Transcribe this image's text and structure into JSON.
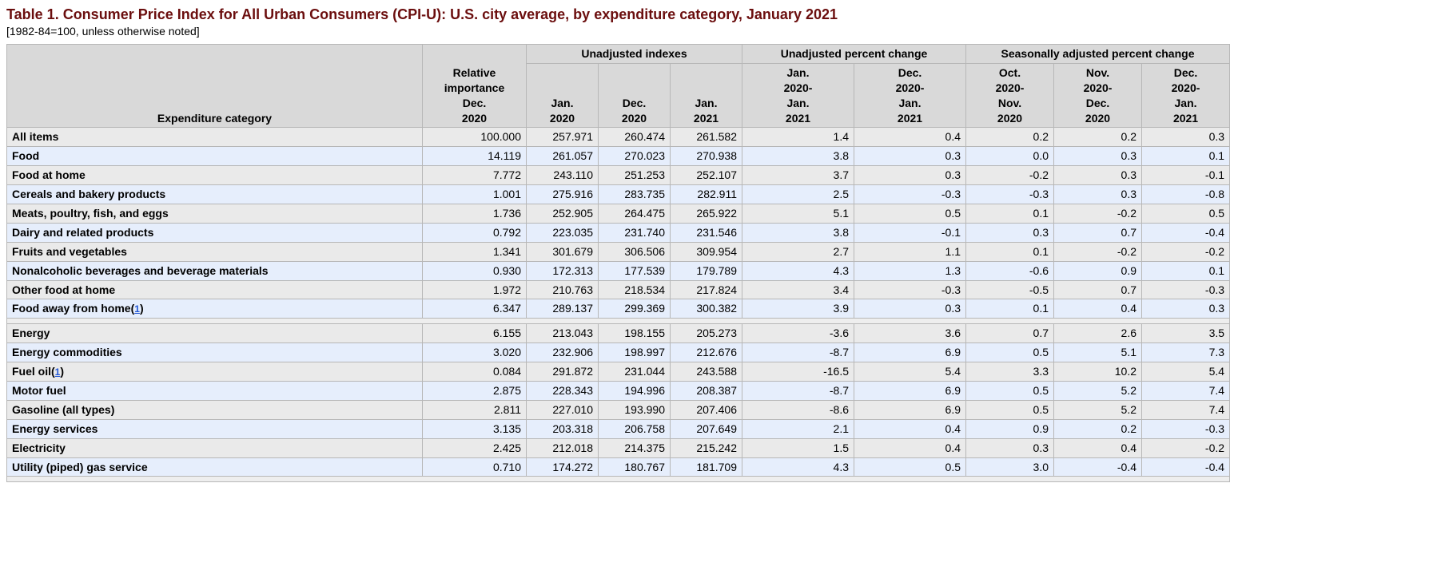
{
  "title": "Table 1. Consumer Price Index for All Urban Consumers (CPI-U): U.S. city average, by expenditure category, January 2021",
  "subtitle": "[1982-84=100, unless otherwise noted]",
  "footnote_marker": "1",
  "colgroups": {
    "g1": "Unadjusted indexes",
    "g2": "Unadjusted percent change",
    "g3": "Seasonally adjusted percent change"
  },
  "columns": {
    "exp": "Expenditure category",
    "rel": "Relative\nimportance\nDec.\n2020",
    "j20": "Jan.\n2020",
    "d20": "Dec.\n2020",
    "j21": "Jan.\n2021",
    "u1": "Jan.\n2020-\nJan.\n2021",
    "u2": "Dec.\n2020-\nJan.\n2021",
    "s1": "Oct.\n2020-\nNov.\n2020",
    "s2": "Nov.\n2020-\nDec.\n2020",
    "s3": "Dec.\n2020-\nJan.\n2021"
  },
  "col_widths": {
    "exp": 520,
    "rel": 130,
    "j20": 90,
    "d20": 90,
    "j21": 90,
    "u1": 140,
    "u2": 140,
    "s1": 110,
    "s2": 110,
    "s3": 110
  },
  "rows": [
    {
      "id": "all",
      "label": "All items",
      "indent": 0,
      "shade": "gray",
      "fn": false,
      "rel": "100.000",
      "j20": "257.971",
      "d20": "260.474",
      "j21": "261.582",
      "u1": "1.4",
      "u2": "0.4",
      "s1": "0.2",
      "s2": "0.2",
      "s3": "0.3"
    },
    {
      "id": "food",
      "label": "Food",
      "indent": 1,
      "shade": "blue",
      "fn": false,
      "rel": "14.119",
      "j20": "261.057",
      "d20": "270.023",
      "j21": "270.938",
      "u1": "3.8",
      "u2": "0.3",
      "s1": "0.0",
      "s2": "0.3",
      "s3": "0.1"
    },
    {
      "id": "fah",
      "label": "Food at home",
      "indent": 2,
      "shade": "gray",
      "fn": false,
      "rel": "7.772",
      "j20": "243.110",
      "d20": "251.253",
      "j21": "252.107",
      "u1": "3.7",
      "u2": "0.3",
      "s1": "-0.2",
      "s2": "0.3",
      "s3": "-0.1"
    },
    {
      "id": "cereals",
      "label": "Cereals and bakery products",
      "indent": 3,
      "shade": "blue",
      "fn": false,
      "rel": "1.001",
      "j20": "275.916",
      "d20": "283.735",
      "j21": "282.911",
      "u1": "2.5",
      "u2": "-0.3",
      "s1": "-0.3",
      "s2": "0.3",
      "s3": "-0.8"
    },
    {
      "id": "meats",
      "label": "Meats, poultry, fish, and eggs",
      "indent": 3,
      "shade": "gray",
      "fn": false,
      "rel": "1.736",
      "j20": "252.905",
      "d20": "264.475",
      "j21": "265.922",
      "u1": "5.1",
      "u2": "0.5",
      "s1": "0.1",
      "s2": "-0.2",
      "s3": "0.5"
    },
    {
      "id": "dairy",
      "label": "Dairy and related products",
      "indent": 3,
      "shade": "blue",
      "fn": false,
      "rel": "0.792",
      "j20": "223.035",
      "d20": "231.740",
      "j21": "231.546",
      "u1": "3.8",
      "u2": "-0.1",
      "s1": "0.3",
      "s2": "0.7",
      "s3": "-0.4"
    },
    {
      "id": "fruits",
      "label": "Fruits and vegetables",
      "indent": 3,
      "shade": "gray",
      "fn": false,
      "rel": "1.341",
      "j20": "301.679",
      "d20": "306.506",
      "j21": "309.954",
      "u1": "2.7",
      "u2": "1.1",
      "s1": "0.1",
      "s2": "-0.2",
      "s3": "-0.2"
    },
    {
      "id": "nonalc",
      "label": "Nonalcoholic beverages and beverage materials",
      "indent": 3,
      "shade": "blue",
      "fn": false,
      "rel": "0.930",
      "j20": "172.313",
      "d20": "177.539",
      "j21": "179.789",
      "u1": "4.3",
      "u2": "1.3",
      "s1": "-0.6",
      "s2": "0.9",
      "s3": "0.1"
    },
    {
      "id": "otherfah",
      "label": "Other food at home",
      "indent": 3,
      "shade": "gray",
      "fn": false,
      "rel": "1.972",
      "j20": "210.763",
      "d20": "218.534",
      "j21": "217.824",
      "u1": "3.4",
      "u2": "-0.3",
      "s1": "-0.5",
      "s2": "0.7",
      "s3": "-0.3"
    },
    {
      "id": "fafh",
      "label": "Food away from home",
      "indent": 2,
      "shade": "blue",
      "fn": true,
      "rel": "6.347",
      "j20": "289.137",
      "d20": "299.369",
      "j21": "300.382",
      "u1": "3.9",
      "u2": "0.3",
      "s1": "0.1",
      "s2": "0.4",
      "s3": "0.3"
    },
    {
      "id": "spacer1",
      "spacer": true
    },
    {
      "id": "energy",
      "label": "Energy",
      "indent": 1,
      "shade": "gray",
      "fn": false,
      "rel": "6.155",
      "j20": "213.043",
      "d20": "198.155",
      "j21": "205.273",
      "u1": "-3.6",
      "u2": "3.6",
      "s1": "0.7",
      "s2": "2.6",
      "s3": "3.5"
    },
    {
      "id": "encom",
      "label": "Energy commodities",
      "indent": 2,
      "shade": "blue",
      "fn": false,
      "rel": "3.020",
      "j20": "232.906",
      "d20": "198.997",
      "j21": "212.676",
      "u1": "-8.7",
      "u2": "6.9",
      "s1": "0.5",
      "s2": "5.1",
      "s3": "7.3"
    },
    {
      "id": "fueloil",
      "label": "Fuel oil",
      "indent": 3,
      "shade": "gray",
      "fn": true,
      "rel": "0.084",
      "j20": "291.872",
      "d20": "231.044",
      "j21": "243.588",
      "u1": "-16.5",
      "u2": "5.4",
      "s1": "3.3",
      "s2": "10.2",
      "s3": "5.4"
    },
    {
      "id": "motorfuel",
      "label": "Motor fuel",
      "indent": 3,
      "shade": "blue",
      "fn": false,
      "rel": "2.875",
      "j20": "228.343",
      "d20": "194.996",
      "j21": "208.387",
      "u1": "-8.7",
      "u2": "6.9",
      "s1": "0.5",
      "s2": "5.2",
      "s3": "7.4"
    },
    {
      "id": "gasoline",
      "label": "Gasoline (all types)",
      "indent": 4,
      "shade": "gray",
      "fn": false,
      "rel": "2.811",
      "j20": "227.010",
      "d20": "193.990",
      "j21": "207.406",
      "u1": "-8.6",
      "u2": "6.9",
      "s1": "0.5",
      "s2": "5.2",
      "s3": "7.4"
    },
    {
      "id": "ensvc",
      "label": "Energy services",
      "indent": 2,
      "shade": "blue",
      "fn": false,
      "rel": "3.135",
      "j20": "203.318",
      "d20": "206.758",
      "j21": "207.649",
      "u1": "2.1",
      "u2": "0.4",
      "s1": "0.9",
      "s2": "0.2",
      "s3": "-0.3"
    },
    {
      "id": "elec",
      "label": "Electricity",
      "indent": 3,
      "shade": "gray",
      "fn": false,
      "rel": "2.425",
      "j20": "212.018",
      "d20": "214.375",
      "j21": "215.242",
      "u1": "1.5",
      "u2": "0.4",
      "s1": "0.3",
      "s2": "0.4",
      "s3": "-0.2"
    },
    {
      "id": "gas",
      "label": "Utility (piped) gas service",
      "indent": 3,
      "shade": "blue",
      "fn": false,
      "rel": "0.710",
      "j20": "174.272",
      "d20": "180.767",
      "j21": "181.709",
      "u1": "4.3",
      "u2": "0.5",
      "s1": "3.0",
      "s2": "-0.4",
      "s3": "-0.4"
    },
    {
      "id": "spacer2",
      "spacer": true
    }
  ]
}
